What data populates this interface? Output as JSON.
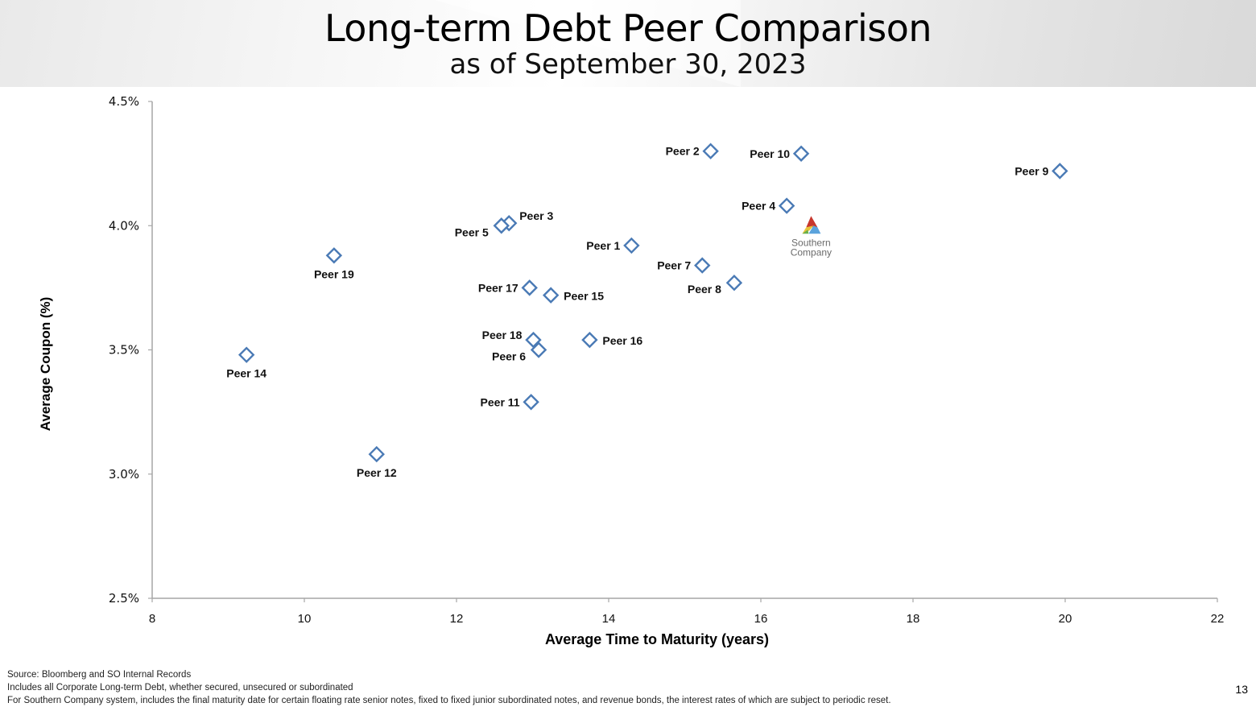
{
  "slide": {
    "title": "Long-term Debt Peer Comparison",
    "subtitle": "as of September 30, 2023",
    "page_number": "13",
    "footnotes": [
      "Source: Bloomberg and SO Internal Records",
      "Includes all Corporate Long-term Debt, whether secured, unsecured or subordinated",
      "For Southern Company system, includes the final maturity date for certain floating rate senior notes, fixed to fixed junior subordinated notes, and revenue bonds, the interest rates of which are subject to periodic reset."
    ],
    "logo": {
      "name": "Southern Company",
      "line1": "Southern",
      "line2": "Company"
    }
  },
  "colors": {
    "marker": "#4a7ab5",
    "axis": "#a6a6a6",
    "logo_red": "#c8372d",
    "logo_blue": "#5ba3dc",
    "logo_yellow": "#e8c43a",
    "logo_green": "#6ab04c"
  },
  "chart_data": {
    "type": "scatter",
    "title": "Long-term Debt Peer Comparison",
    "subtitle": "as of September 30, 2023",
    "xlabel": "Average Time to Maturity (years)",
    "ylabel": "Average Coupon (%)",
    "xlim": [
      8,
      22
    ],
    "ylim": [
      2.5,
      4.5
    ],
    "xticks": [
      8,
      10,
      12,
      14,
      16,
      18,
      20,
      22
    ],
    "yticks": [
      2.5,
      3.0,
      3.5,
      4.0,
      4.5
    ],
    "ytick_labels": [
      "2.5%",
      "3.0%",
      "3.5%",
      "4.0%",
      "4.5%"
    ],
    "grid": false,
    "legend": "none",
    "points": [
      {
        "label": "Peer 1",
        "x": 14.3,
        "y": 3.92,
        "label_pos": "left"
      },
      {
        "label": "Peer 2",
        "x": 15.34,
        "y": 4.3,
        "label_pos": "left"
      },
      {
        "label": "Peer 3",
        "x": 12.69,
        "y": 4.01,
        "label_pos": "upper-right"
      },
      {
        "label": "Peer 4",
        "x": 16.34,
        "y": 4.08,
        "label_pos": "left"
      },
      {
        "label": "Peer 5",
        "x": 12.59,
        "y": 4.0,
        "label_pos": "lower-left"
      },
      {
        "label": "Peer 6",
        "x": 13.08,
        "y": 3.5,
        "label_pos": "lower-left"
      },
      {
        "label": "Peer 7",
        "x": 15.23,
        "y": 3.84,
        "label_pos": "left"
      },
      {
        "label": "Peer 8",
        "x": 15.65,
        "y": 3.77,
        "label_pos": "lower-left"
      },
      {
        "label": "Peer 9",
        "x": 19.93,
        "y": 4.22,
        "label_pos": "left"
      },
      {
        "label": "Peer 10",
        "x": 16.53,
        "y": 4.29,
        "label_pos": "left"
      },
      {
        "label": "Peer 11",
        "x": 12.98,
        "y": 3.29,
        "label_pos": "left"
      },
      {
        "label": "Peer 12",
        "x": 10.95,
        "y": 3.08,
        "label_pos": "below"
      },
      {
        "label": "Peer 14",
        "x": 9.24,
        "y": 3.48,
        "label_pos": "below"
      },
      {
        "label": "Peer 15",
        "x": 13.24,
        "y": 3.72,
        "label_pos": "right"
      },
      {
        "label": "Peer 16",
        "x": 13.75,
        "y": 3.54,
        "label_pos": "right"
      },
      {
        "label": "Peer 17",
        "x": 12.96,
        "y": 3.75,
        "label_pos": "left"
      },
      {
        "label": "Peer 18",
        "x": 13.01,
        "y": 3.54,
        "label_pos": "upper-left"
      },
      {
        "label": "Peer 19",
        "x": 10.39,
        "y": 3.88,
        "label_pos": "below"
      }
    ],
    "highlight": {
      "label": "Southern Company",
      "x": 16.66,
      "y": 4.0,
      "marker": "logo"
    }
  }
}
